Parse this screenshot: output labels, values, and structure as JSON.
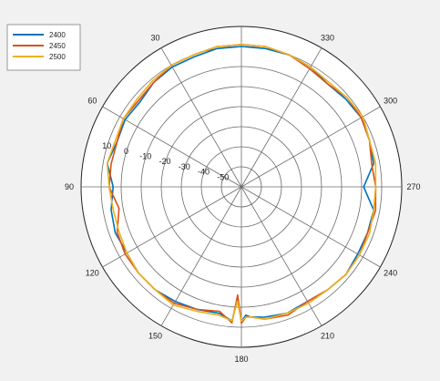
{
  "chart_data": {
    "type": "polar-line",
    "title": "",
    "grid": true,
    "direction": "counterclockwise",
    "zero_location": "top",
    "angle_unit": "degrees",
    "angle_ticks": [
      0,
      30,
      60,
      90,
      120,
      150,
      180,
      210,
      240,
      270,
      300,
      330
    ],
    "angle_tick_labels": [
      "",
      "30",
      "60",
      "90",
      "120",
      "150",
      "180",
      "210",
      "240",
      "270",
      "300",
      "330"
    ],
    "r_range": [
      -60,
      20
    ],
    "r_ticks": [
      -50,
      -40,
      -30,
      -20,
      -10,
      0,
      10
    ],
    "r_tick_labels": [
      "-50",
      "-40",
      "-30",
      "-20",
      "-10",
      "0",
      "10"
    ],
    "legend_position": "top-left",
    "series": [
      {
        "name": "2400",
        "color": "#0072bd",
        "theta": [
          0,
          10,
          20,
          30,
          40,
          50,
          60,
          70,
          80,
          90,
          100,
          110,
          120,
          130,
          140,
          150,
          160,
          170,
          176,
          178,
          180,
          182,
          184,
          190,
          200,
          210,
          220,
          230,
          240,
          250,
          260,
          270,
          280,
          290,
          300,
          310,
          320,
          330,
          340,
          350
        ],
        "r": [
          10,
          10,
          9,
          9,
          8,
          6,
          7,
          6,
          8,
          4,
          6,
          7,
          6,
          7,
          7,
          6,
          5,
          4,
          7,
          -4,
          7,
          4,
          5,
          6,
          7,
          6,
          7,
          8,
          7,
          7,
          7,
          1,
          7,
          8,
          9,
          8,
          7,
          9,
          10,
          10
        ]
      },
      {
        "name": "2450",
        "color": "#d95319",
        "theta": [
          0,
          10,
          20,
          30,
          40,
          50,
          60,
          70,
          80,
          90,
          100,
          110,
          120,
          130,
          140,
          150,
          160,
          170,
          176,
          178,
          180,
          182,
          184,
          190,
          200,
          210,
          220,
          230,
          240,
          250,
          260,
          270,
          280,
          290,
          300,
          310,
          320,
          330,
          340,
          350
        ],
        "r": [
          11,
          11,
          10,
          10,
          8,
          7,
          8,
          6,
          6,
          6,
          2,
          6,
          7,
          7,
          7,
          7,
          5,
          3,
          8,
          -6,
          8,
          5,
          5,
          7,
          8,
          6,
          7,
          8,
          8,
          7,
          8,
          7,
          6,
          8,
          9,
          9,
          7,
          8,
          10,
          11
        ]
      },
      {
        "name": "2500",
        "color": "#edb120",
        "theta": [
          0,
          10,
          20,
          30,
          40,
          50,
          60,
          70,
          80,
          90,
          100,
          110,
          120,
          130,
          140,
          150,
          160,
          170,
          176,
          178,
          180,
          182,
          184,
          190,
          200,
          210,
          220,
          230,
          240,
          250,
          260,
          270,
          280,
          290,
          300,
          310,
          320,
          330,
          340,
          350
        ],
        "r": [
          11,
          11,
          10,
          10,
          9,
          8,
          8,
          7,
          8,
          6,
          5,
          5,
          6,
          7,
          7,
          8,
          6,
          5,
          7,
          -3,
          7,
          5,
          5,
          7,
          7,
          7,
          7,
          8,
          8,
          8,
          7,
          7,
          8,
          8,
          10,
          9,
          8,
          9,
          10,
          11
        ]
      }
    ]
  }
}
